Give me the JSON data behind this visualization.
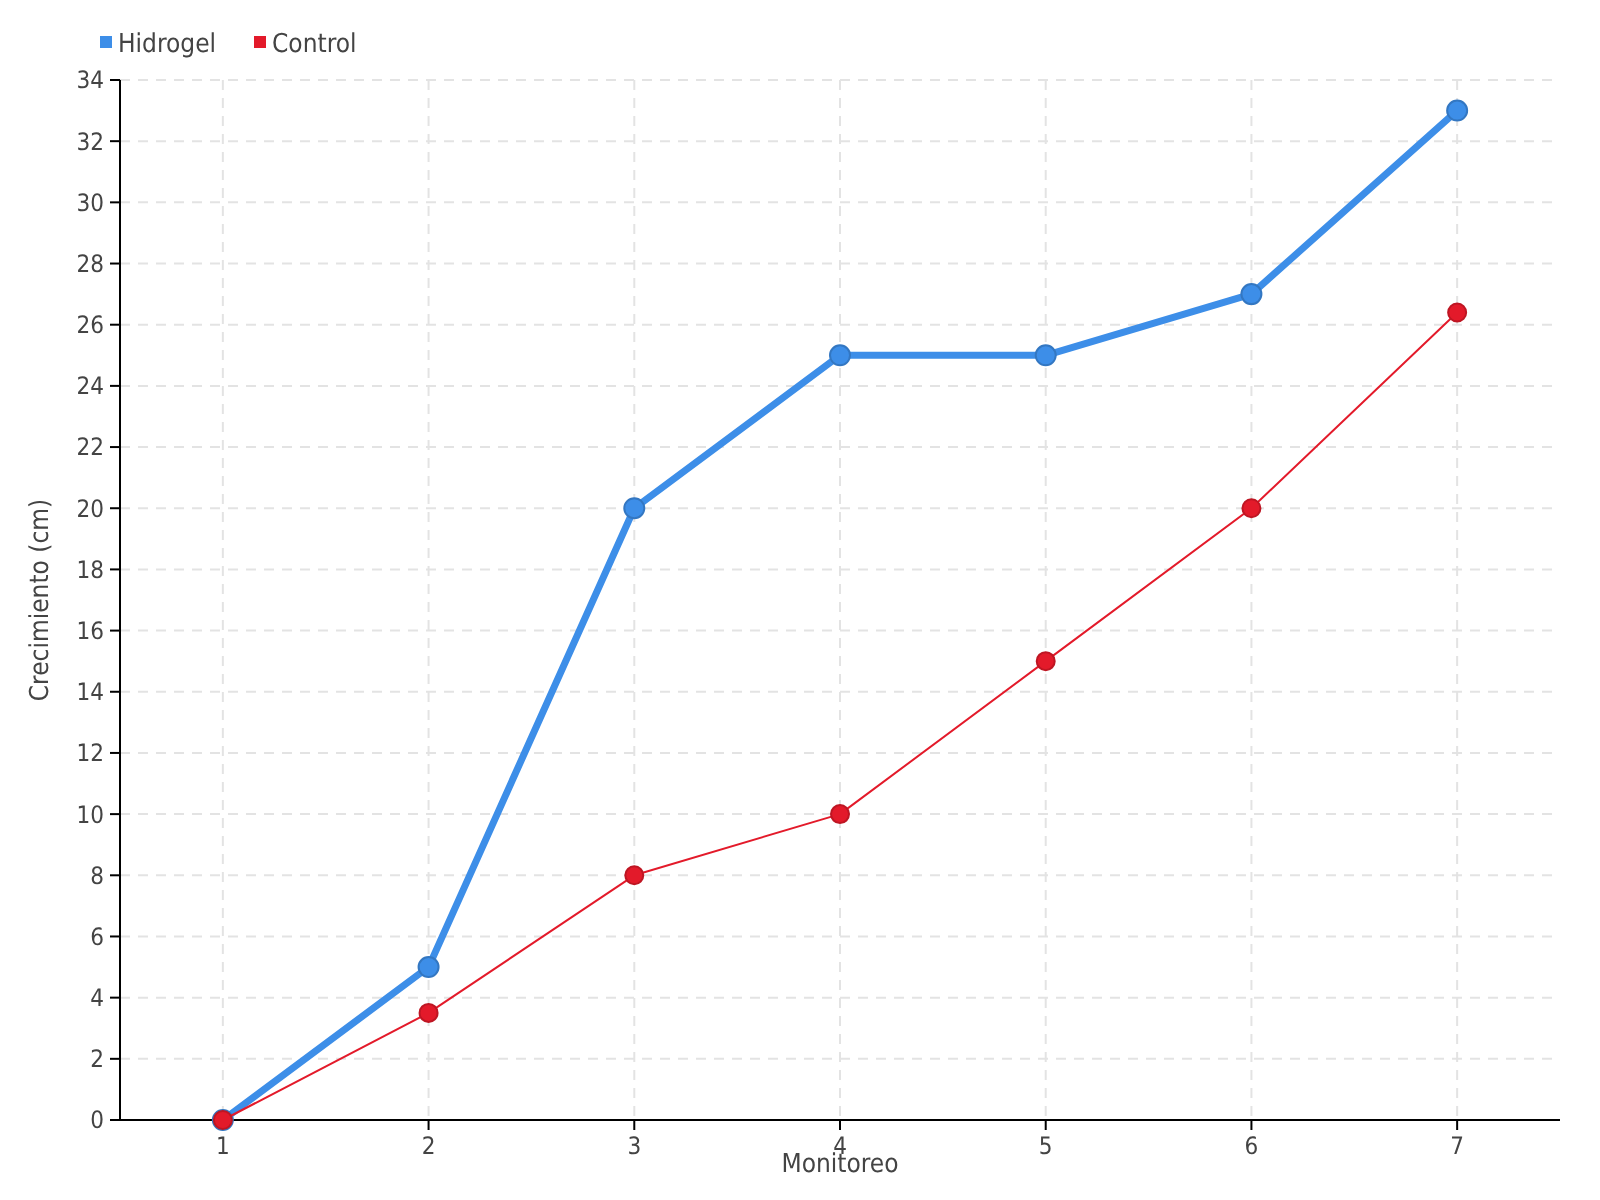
{
  "chart_data": {
    "type": "line",
    "xlabel": "Monitoreo",
    "ylabel": "Crecimiento (cm)",
    "categories": [
      "1",
      "2",
      "3",
      "4",
      "5",
      "6",
      "7"
    ],
    "series": [
      {
        "name": "Hidrogel",
        "color": "#3d8ee8",
        "values": [
          0,
          5,
          20,
          25,
          25,
          27,
          33
        ]
      },
      {
        "name": "Control",
        "color": "#e31a2a",
        "values": [
          0,
          3.5,
          8,
          10,
          15,
          20,
          26.4
        ]
      }
    ],
    "ylim": [
      0,
      34
    ],
    "yticks": [
      0,
      2,
      4,
      6,
      8,
      10,
      12,
      14,
      16,
      18,
      20,
      22,
      24,
      26,
      28,
      30,
      32,
      34
    ],
    "grid": true,
    "legend": "top left",
    "marker": "circle"
  }
}
